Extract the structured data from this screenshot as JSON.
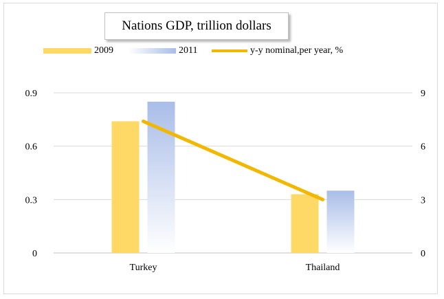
{
  "chart_data": {
    "type": "bar",
    "title": "Nations GDP, trillion dollars",
    "categories": [
      "Turkey",
      "Thailand"
    ],
    "series": [
      {
        "name": "2009",
        "type": "bar",
        "axis": "left",
        "values": [
          0.74,
          0.33
        ],
        "color": "#ffd966"
      },
      {
        "name": "2011",
        "type": "bar",
        "axis": "left",
        "values": [
          0.85,
          0.35
        ],
        "color": "#a9bde8"
      },
      {
        "name": "y-y nominal,per year, %",
        "type": "line",
        "axis": "right",
        "values": [
          7.4,
          3.0
        ],
        "color": "#f2b800"
      }
    ],
    "y_left": {
      "ylim": [
        0,
        0.9
      ],
      "ticks": [
        "0",
        "0.3",
        "0.6",
        "0.9"
      ]
    },
    "y_right": {
      "ylim": [
        0,
        9
      ],
      "ticks": [
        "0",
        "3",
        "6",
        "9"
      ]
    },
    "grid": true,
    "legend_position": "top"
  }
}
